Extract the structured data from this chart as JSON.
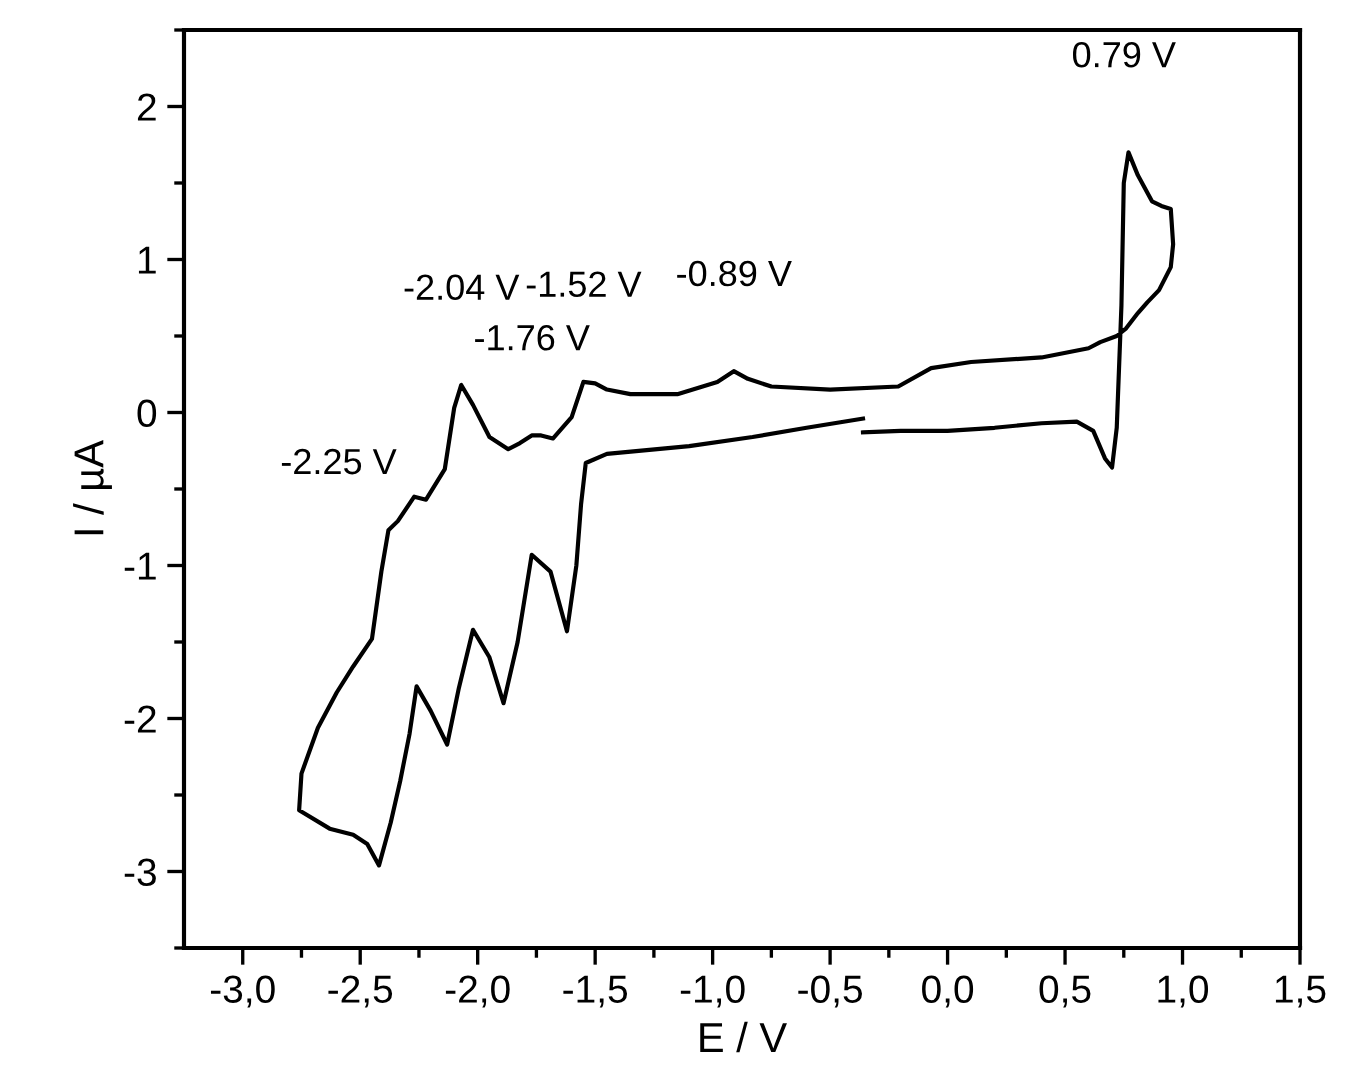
{
  "chart_data": {
    "type": "line",
    "xlabel": "E / V",
    "ylabel": "I / µA",
    "xlim": [
      -3.25,
      1.5
    ],
    "ylim": [
      -3.5,
      2.5
    ],
    "xticks": [
      {
        "value": -3,
        "label": "-3,0"
      },
      {
        "value": -2.75,
        "label": null
      },
      {
        "value": -2.5,
        "label": "-2,5"
      },
      {
        "value": -2.25,
        "label": null
      },
      {
        "value": -2,
        "label": "-2,0"
      },
      {
        "value": -1.75,
        "label": null
      },
      {
        "value": -1.5,
        "label": "-1,5"
      },
      {
        "value": -1.25,
        "label": null
      },
      {
        "value": -1,
        "label": "-1,0"
      },
      {
        "value": -0.75,
        "label": null
      },
      {
        "value": -0.5,
        "label": "-0,5"
      },
      {
        "value": -0.25,
        "label": null
      },
      {
        "value": 0,
        "label": "0,0"
      },
      {
        "value": 0.25,
        "label": null
      },
      {
        "value": 0.5,
        "label": "0,5"
      },
      {
        "value": 0.75,
        "label": null
      },
      {
        "value": 1,
        "label": "1,0"
      },
      {
        "value": 1.25,
        "label": null
      },
      {
        "value": 1.5,
        "label": "1,5"
      }
    ],
    "yticks": [
      {
        "value": -3.5,
        "label": null
      },
      -3,
      {
        "value": -2.5,
        "label": null
      },
      -2,
      {
        "value": -1.5,
        "label": null
      },
      -1,
      {
        "value": -0.5,
        "label": null
      },
      0,
      {
        "value": 0.5,
        "label": null
      },
      1,
      {
        "value": 1.5,
        "label": null
      },
      2,
      {
        "value": 2.5,
        "label": null
      }
    ],
    "grid": false,
    "marker": "none",
    "line_style": "solid",
    "series": [
      {
        "color": "#000000",
        "x": [
          -0.36,
          -0.2,
          0.0,
          0.2,
          0.4,
          0.55,
          0.62,
          0.67,
          0.7,
          0.72,
          0.74,
          0.75,
          0.77,
          0.81,
          0.87,
          0.91,
          0.95,
          0.96,
          0.95,
          0.9,
          0.85,
          0.81,
          0.76,
          0.72,
          0.65,
          0.6,
          0.4,
          0.1,
          -0.07,
          -0.21,
          -0.5,
          -0.75,
          -0.85,
          -0.91,
          -0.98,
          -1.15,
          -1.35,
          -1.45,
          -1.5,
          -1.55,
          -1.6,
          -1.68,
          -1.73,
          -1.77,
          -1.82,
          -1.87,
          -1.95,
          -2.02,
          -2.07,
          -2.1,
          -2.14,
          -2.22,
          -2.27,
          -2.34,
          -2.38,
          -2.41,
          -2.45,
          -2.53,
          -2.6,
          -2.68,
          -2.75,
          -2.76,
          -2.63,
          -2.53,
          -2.47,
          -2.42,
          -2.37,
          -2.33,
          -2.29,
          -2.26,
          -2.2,
          -2.13,
          -2.08,
          -2.02,
          -1.95,
          -1.89,
          -1.83,
          -1.77,
          -1.69,
          -1.62,
          -1.58,
          -1.56,
          -1.54,
          -1.45,
          -1.1,
          -0.83,
          -0.6,
          -0.36
        ],
        "values": [
          -0.13,
          -0.12,
          -0.12,
          -0.1,
          -0.07,
          -0.06,
          -0.12,
          -0.3,
          -0.36,
          -0.1,
          0.7,
          1.5,
          1.7,
          1.55,
          1.38,
          1.35,
          1.33,
          1.1,
          0.95,
          0.8,
          0.72,
          0.65,
          0.55,
          0.5,
          0.46,
          0.42,
          0.36,
          0.33,
          0.29,
          0.17,
          0.15,
          0.17,
          0.22,
          0.27,
          0.2,
          0.12,
          0.12,
          0.15,
          0.19,
          0.2,
          -0.03,
          -0.17,
          -0.15,
          -0.15,
          -0.2,
          -0.24,
          -0.16,
          0.05,
          0.18,
          0.03,
          -0.37,
          -0.57,
          -0.55,
          -0.71,
          -0.77,
          -1.04,
          -1.48,
          -1.66,
          -1.83,
          -2.06,
          -2.36,
          -2.6,
          -2.72,
          -2.76,
          -2.82,
          -2.96,
          -2.68,
          -2.41,
          -2.1,
          -1.79,
          -1.95,
          -2.17,
          -1.8,
          -1.42,
          -1.6,
          -1.9,
          -1.5,
          -0.93,
          -1.04,
          -1.43,
          -1.0,
          -0.6,
          -0.33,
          -0.27,
          -0.22,
          -0.16,
          -0.1,
          -0.04
        ]
      }
    ],
    "annotations": [
      {
        "text": "-2.25 V",
        "x": -2.25,
        "y": -0.56
      },
      {
        "text": "-2.04 V",
        "x": -2.07,
        "y": 0.18
      },
      {
        "text": "-1.76 V",
        "x": -1.77,
        "y": -0.15
      },
      {
        "text": "-1.52 V",
        "x": -1.55,
        "y": 0.2
      },
      {
        "text": "-0.89 V",
        "x": -0.91,
        "y": 0.27
      },
      {
        "text": "0.79 V",
        "x": 0.75,
        "y": 1.7
      }
    ]
  }
}
